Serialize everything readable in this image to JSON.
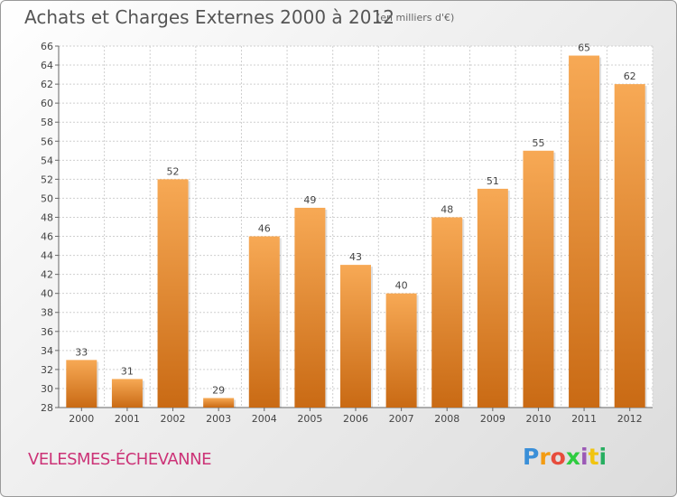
{
  "header": {
    "title": "Achats et Charges Externes 2000 à 2012",
    "subtitle": "(en milliers d'€)"
  },
  "footer": {
    "commune": "VELESMES-ÉCHEVANNE",
    "logo": [
      "P",
      "r",
      "o",
      "x",
      "i",
      "t",
      "i"
    ],
    "logo_colors": [
      "#3a8fd8",
      "#f39c12",
      "#e74c3c",
      "#2ecc40",
      "#9b59b6",
      "#f1c40f",
      "#27ae60"
    ]
  },
  "colors": {
    "bar_light": "#f7a955",
    "bar_dark": "#c96a14",
    "grid": "#cfcfcf"
  },
  "chart_data": {
    "type": "bar",
    "title": "Achats et Charges Externes 2000 à 2012",
    "subtitle": "(en milliers d'€)",
    "categories": [
      "2000",
      "2001",
      "2002",
      "2003",
      "2004",
      "2005",
      "2006",
      "2007",
      "2008",
      "2009",
      "2010",
      "2011",
      "2012"
    ],
    "values": [
      33,
      31,
      52,
      29,
      46,
      49,
      43,
      40,
      48,
      51,
      55,
      65,
      62
    ],
    "data_labels": [
      "33",
      "31",
      "52",
      "29",
      "46",
      "49",
      "43",
      "40",
      "48",
      "51",
      "55",
      "65",
      "62"
    ],
    "ylim": [
      28,
      66
    ],
    "yticks": [
      28,
      30,
      32,
      34,
      36,
      38,
      40,
      42,
      44,
      46,
      48,
      50,
      52,
      54,
      56,
      58,
      60,
      62,
      64,
      66
    ],
    "ytick_labels": [
      "28",
      "30",
      "32",
      "34",
      "36",
      "38",
      "40",
      "42",
      "44",
      "46",
      "48",
      "50",
      "52",
      "54",
      "56",
      "58",
      "60",
      "62",
      "64",
      "66"
    ],
    "grid": true,
    "xlabel": "",
    "ylabel": ""
  }
}
